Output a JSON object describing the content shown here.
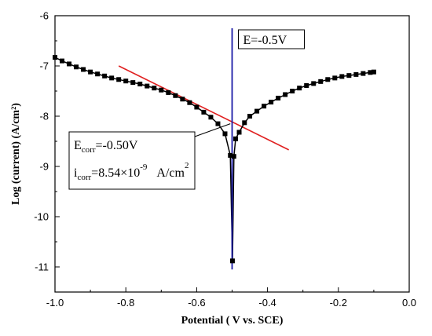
{
  "chart_data": {
    "type": "scatter",
    "xlabel": "Potential ( V vs. SCE)",
    "ylabel": "Log (current) (A/cm²)",
    "xlim": [
      -1.0,
      0.0
    ],
    "ylim": [
      -11.5,
      -6.0
    ],
    "xticks": [
      -1.0,
      -0.8,
      -0.6,
      -0.4,
      -0.2,
      0.0
    ],
    "xtick_labels": [
      "-1.0",
      "-0.8",
      "-0.6",
      "-0.4",
      "-0.2",
      "0.0"
    ],
    "yticks": [
      -6,
      -7,
      -8,
      -9,
      -10,
      -11
    ],
    "ytick_labels": [
      "-6",
      "-7",
      "-8",
      "-9",
      "-10",
      "-11"
    ],
    "grid": false,
    "series": [
      {
        "color": "#000000",
        "marker": "square",
        "x": [
          -1.0,
          -0.98,
          -0.96,
          -0.94,
          -0.92,
          -0.9,
          -0.88,
          -0.86,
          -0.84,
          -0.82,
          -0.8,
          -0.78,
          -0.76,
          -0.74,
          -0.72,
          -0.7,
          -0.68,
          -0.66,
          -0.64,
          -0.62,
          -0.6,
          -0.58,
          -0.56,
          -0.54,
          -0.52,
          -0.505,
          -0.499,
          -0.495,
          -0.49,
          -0.48,
          -0.465,
          -0.45,
          -0.43,
          -0.41,
          -0.39,
          -0.37,
          -0.35,
          -0.33,
          -0.31,
          -0.29,
          -0.27,
          -0.25,
          -0.23,
          -0.21,
          -0.19,
          -0.17,
          -0.15,
          -0.13,
          -0.11,
          -0.1
        ],
        "y": [
          -6.83,
          -6.9,
          -6.96,
          -7.02,
          -7.07,
          -7.12,
          -7.16,
          -7.2,
          -7.24,
          -7.27,
          -7.3,
          -7.33,
          -7.36,
          -7.4,
          -7.44,
          -7.48,
          -7.53,
          -7.59,
          -7.66,
          -7.73,
          -7.82,
          -7.92,
          -8.02,
          -8.15,
          -8.35,
          -8.78,
          -10.88,
          -8.8,
          -8.45,
          -8.32,
          -8.13,
          -8.0,
          -7.9,
          -7.8,
          -7.72,
          -7.64,
          -7.57,
          -7.5,
          -7.44,
          -7.39,
          -7.35,
          -7.31,
          -7.27,
          -7.24,
          -7.21,
          -7.19,
          -7.17,
          -7.15,
          -7.13,
          -7.12
        ]
      }
    ],
    "tangent": {
      "color": "#e02020",
      "x": [
        -0.82,
        -0.34
      ],
      "y": [
        -7.0,
        -8.67
      ]
    },
    "vline": {
      "color": "#1a1aa6",
      "x": -0.5,
      "y": [
        -11.05,
        -6.25
      ]
    },
    "annotations": {
      "e_label": "E=-0.5V",
      "ecorr_main": "E",
      "ecorr_sub": "corr",
      "ecorr_value": "=-0.50V",
      "icorr_main": "i",
      "icorr_sub": "corr",
      "icorr_value": "=8.54×10",
      "icorr_exp": "-9",
      "icorr_unit": "A/cm",
      "icorr_unit_sup": "2"
    }
  }
}
